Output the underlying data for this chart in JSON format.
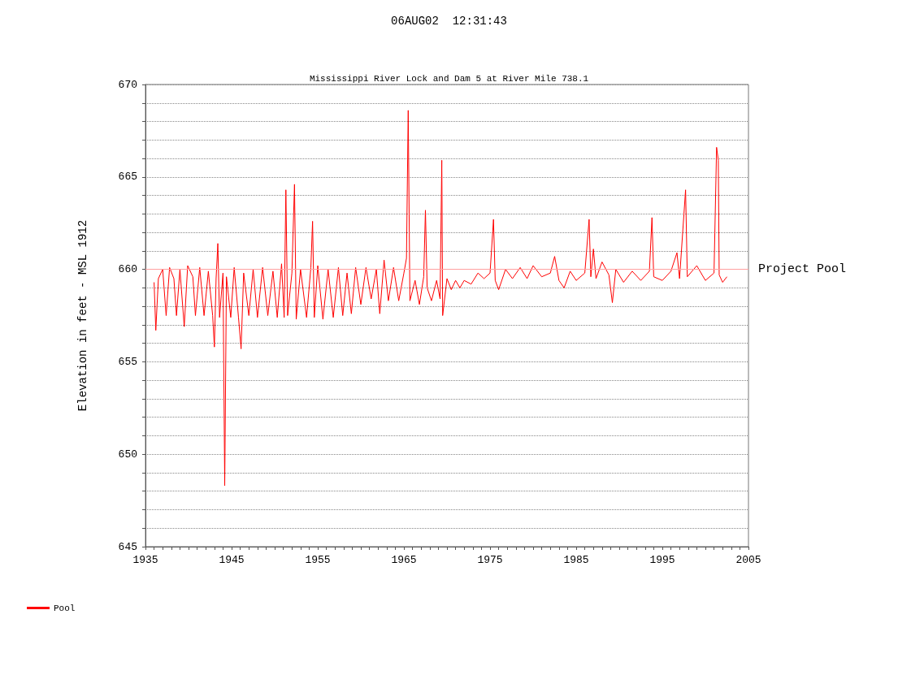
{
  "chart_data": {
    "type": "line",
    "title": "Mississippi River Lock and Dam 5 at River Mile 738.1",
    "ylabel": "Elevation in feet - MSL 1912",
    "annotations": [
      "06AUG02  12:31:43"
    ],
    "xlim": [
      1935,
      2005
    ],
    "xticks": [
      1935,
      {
        "value": 1936,
        "label": null
      },
      {
        "value": 1937,
        "label": null
      },
      {
        "value": 1938,
        "label": null
      },
      {
        "value": 1939,
        "label": null
      },
      {
        "value": 1940,
        "label": null
      },
      {
        "value": 1941,
        "label": null
      },
      {
        "value": 1942,
        "label": null
      },
      {
        "value": 1943,
        "label": null
      },
      {
        "value": 1944,
        "label": null
      },
      1945,
      {
        "value": 1946,
        "label": null
      },
      {
        "value": 1947,
        "label": null
      },
      {
        "value": 1948,
        "label": null
      },
      {
        "value": 1949,
        "label": null
      },
      {
        "value": 1950,
        "label": null
      },
      {
        "value": 1951,
        "label": null
      },
      {
        "value": 1952,
        "label": null
      },
      {
        "value": 1953,
        "label": null
      },
      {
        "value": 1954,
        "label": null
      },
      1955,
      {
        "value": 1956,
        "label": null
      },
      {
        "value": 1957,
        "label": null
      },
      {
        "value": 1958,
        "label": null
      },
      {
        "value": 1959,
        "label": null
      },
      {
        "value": 1960,
        "label": null
      },
      {
        "value": 1961,
        "label": null
      },
      {
        "value": 1962,
        "label": null
      },
      {
        "value": 1963,
        "label": null
      },
      {
        "value": 1964,
        "label": null
      },
      1965,
      {
        "value": 1966,
        "label": null
      },
      {
        "value": 1967,
        "label": null
      },
      {
        "value": 1968,
        "label": null
      },
      {
        "value": 1969,
        "label": null
      },
      {
        "value": 1970,
        "label": null
      },
      {
        "value": 1971,
        "label": null
      },
      {
        "value": 1972,
        "label": null
      },
      {
        "value": 1973,
        "label": null
      },
      {
        "value": 1974,
        "label": null
      },
      1975,
      {
        "value": 1976,
        "label": null
      },
      {
        "value": 1977,
        "label": null
      },
      {
        "value": 1978,
        "label": null
      },
      {
        "value": 1979,
        "label": null
      },
      {
        "value": 1980,
        "label": null
      },
      {
        "value": 1981,
        "label": null
      },
      {
        "value": 1982,
        "label": null
      },
      {
        "value": 1983,
        "label": null
      },
      {
        "value": 1984,
        "label": null
      },
      1985,
      {
        "value": 1986,
        "label": null
      },
      {
        "value": 1987,
        "label": null
      },
      {
        "value": 1988,
        "label": null
      },
      {
        "value": 1989,
        "label": null
      },
      {
        "value": 1990,
        "label": null
      },
      {
        "value": 1991,
        "label": null
      },
      {
        "value": 1992,
        "label": null
      },
      {
        "value": 1993,
        "label": null
      },
      {
        "value": 1994,
        "label": null
      },
      1995,
      {
        "value": 1996,
        "label": null
      },
      {
        "value": 1997,
        "label": null
      },
      {
        "value": 1998,
        "label": null
      },
      {
        "value": 1999,
        "label": null
      },
      {
        "value": 2000,
        "label": null
      },
      {
        "value": 2001,
        "label": null
      },
      {
        "value": 2002,
        "label": null
      },
      {
        "value": 2003,
        "label": null
      },
      {
        "value": 2004,
        "label": null
      },
      2005
    ],
    "ylim": [
      645,
      670
    ],
    "yticks": [
      645,
      {
        "value": 646,
        "label": null
      },
      {
        "value": 647,
        "label": null
      },
      {
        "value": 648,
        "label": null
      },
      {
        "value": 649,
        "label": null
      },
      650,
      {
        "value": 651,
        "label": null
      },
      {
        "value": 652,
        "label": null
      },
      {
        "value": 653,
        "label": null
      },
      {
        "value": 654,
        "label": null
      },
      655,
      {
        "value": 656,
        "label": null
      },
      {
        "value": 657,
        "label": null
      },
      {
        "value": 658,
        "label": null
      },
      {
        "value": 659,
        "label": null
      },
      660,
      {
        "value": 661,
        "label": null
      },
      {
        "value": 662,
        "label": null
      },
      {
        "value": 663,
        "label": null
      },
      {
        "value": 664,
        "label": null
      },
      665,
      {
        "value": 666,
        "label": null
      },
      {
        "value": 667,
        "label": null
      },
      {
        "value": 668,
        "label": null
      },
      {
        "value": 669,
        "label": null
      },
      670
    ],
    "grid": "y",
    "legend": "bottom left",
    "marker": "none",
    "line_style": "solid",
    "ref_lines": [
      {
        "axis": "y",
        "value": 660,
        "label": "Project Pool",
        "color": "#ffa0a0"
      }
    ],
    "series": [
      {
        "name": "Pool",
        "color": "#ff0000",
        "x": [
          1936.0,
          1936.2,
          1936.5,
          1937.0,
          1937.4,
          1937.8,
          1938.3,
          1938.6,
          1939.0,
          1939.5,
          1939.9,
          1940.5,
          1940.8,
          1941.3,
          1941.8,
          1942.3,
          1942.8,
          1943.0,
          1943.2,
          1943.4,
          1943.6,
          1944.0,
          1944.2,
          1944.4,
          1944.9,
          1945.3,
          1945.8,
          1946.1,
          1946.4,
          1947.0,
          1947.5,
          1948.0,
          1948.6,
          1949.2,
          1949.8,
          1950.3,
          1950.8,
          1951.1,
          1951.3,
          1951.5,
          1952.0,
          1952.3,
          1952.5,
          1953.0,
          1953.7,
          1954.2,
          1954.4,
          1954.6,
          1955.0,
          1955.6,
          1956.2,
          1956.8,
          1957.4,
          1957.9,
          1958.4,
          1958.9,
          1959.4,
          1960.0,
          1960.6,
          1961.2,
          1961.8,
          1962.2,
          1962.7,
          1963.2,
          1963.8,
          1964.4,
          1965.0,
          1965.3,
          1965.5,
          1965.7,
          1966.3,
          1966.8,
          1967.3,
          1967.5,
          1967.7,
          1968.2,
          1968.8,
          1969.2,
          1969.4,
          1969.5,
          1970.0,
          1970.5,
          1971.0,
          1971.5,
          1972.0,
          1972.8,
          1973.6,
          1974.3,
          1975.0,
          1975.4,
          1975.6,
          1976.0,
          1976.8,
          1977.6,
          1978.5,
          1979.3,
          1980.0,
          1981.0,
          1982.0,
          1982.5,
          1983.0,
          1983.6,
          1984.3,
          1985.0,
          1986.0,
          1986.5,
          1986.7,
          1987.0,
          1987.3,
          1988.0,
          1988.8,
          1989.2,
          1989.6,
          1990.5,
          1991.5,
          1992.5,
          1993.5,
          1993.8,
          1994.0,
          1995.0,
          1996.0,
          1996.7,
          1997.0,
          1997.7,
          1997.9,
          1999.0,
          2000.0,
          2001.0,
          2001.3,
          2001.5,
          2001.6,
          2002.0,
          2002.5
        ],
        "values": [
          659.3,
          656.7,
          659.5,
          660.0,
          657.5,
          660.1,
          659.5,
          657.5,
          660.0,
          656.9,
          660.2,
          659.6,
          657.5,
          660.1,
          657.5,
          659.9,
          657.5,
          655.8,
          659.5,
          661.4,
          657.4,
          659.8,
          648.3,
          659.6,
          657.4,
          660.1,
          657.4,
          655.7,
          659.8,
          657.5,
          660.0,
          657.4,
          660.1,
          657.5,
          659.9,
          657.4,
          660.3,
          657.4,
          664.3,
          657.5,
          659.8,
          664.6,
          657.3,
          660.0,
          657.4,
          660.1,
          662.6,
          657.4,
          660.2,
          657.3,
          660.0,
          657.4,
          660.1,
          657.5,
          659.8,
          657.6,
          660.1,
          658.1,
          660.1,
          658.4,
          660.0,
          657.6,
          660.5,
          658.3,
          660.1,
          658.3,
          659.8,
          660.6,
          668.6,
          658.3,
          659.4,
          658.1,
          659.6,
          663.2,
          659.0,
          658.3,
          659.4,
          658.4,
          665.9,
          657.5,
          659.5,
          658.9,
          659.4,
          659.0,
          659.4,
          659.2,
          659.8,
          659.5,
          659.8,
          662.7,
          659.4,
          658.9,
          660.0,
          659.5,
          660.1,
          659.5,
          660.2,
          659.6,
          659.8,
          660.7,
          659.4,
          659.0,
          659.9,
          659.4,
          659.8,
          662.7,
          659.6,
          661.1,
          659.5,
          660.4,
          659.7,
          658.2,
          660.0,
          659.3,
          659.9,
          659.4,
          659.9,
          662.8,
          659.6,
          659.4,
          659.9,
          660.9,
          659.5,
          664.3,
          659.6,
          660.2,
          659.4,
          659.8,
          666.6,
          665.9,
          659.7,
          659.3,
          659.6
        ]
      }
    ]
  }
}
